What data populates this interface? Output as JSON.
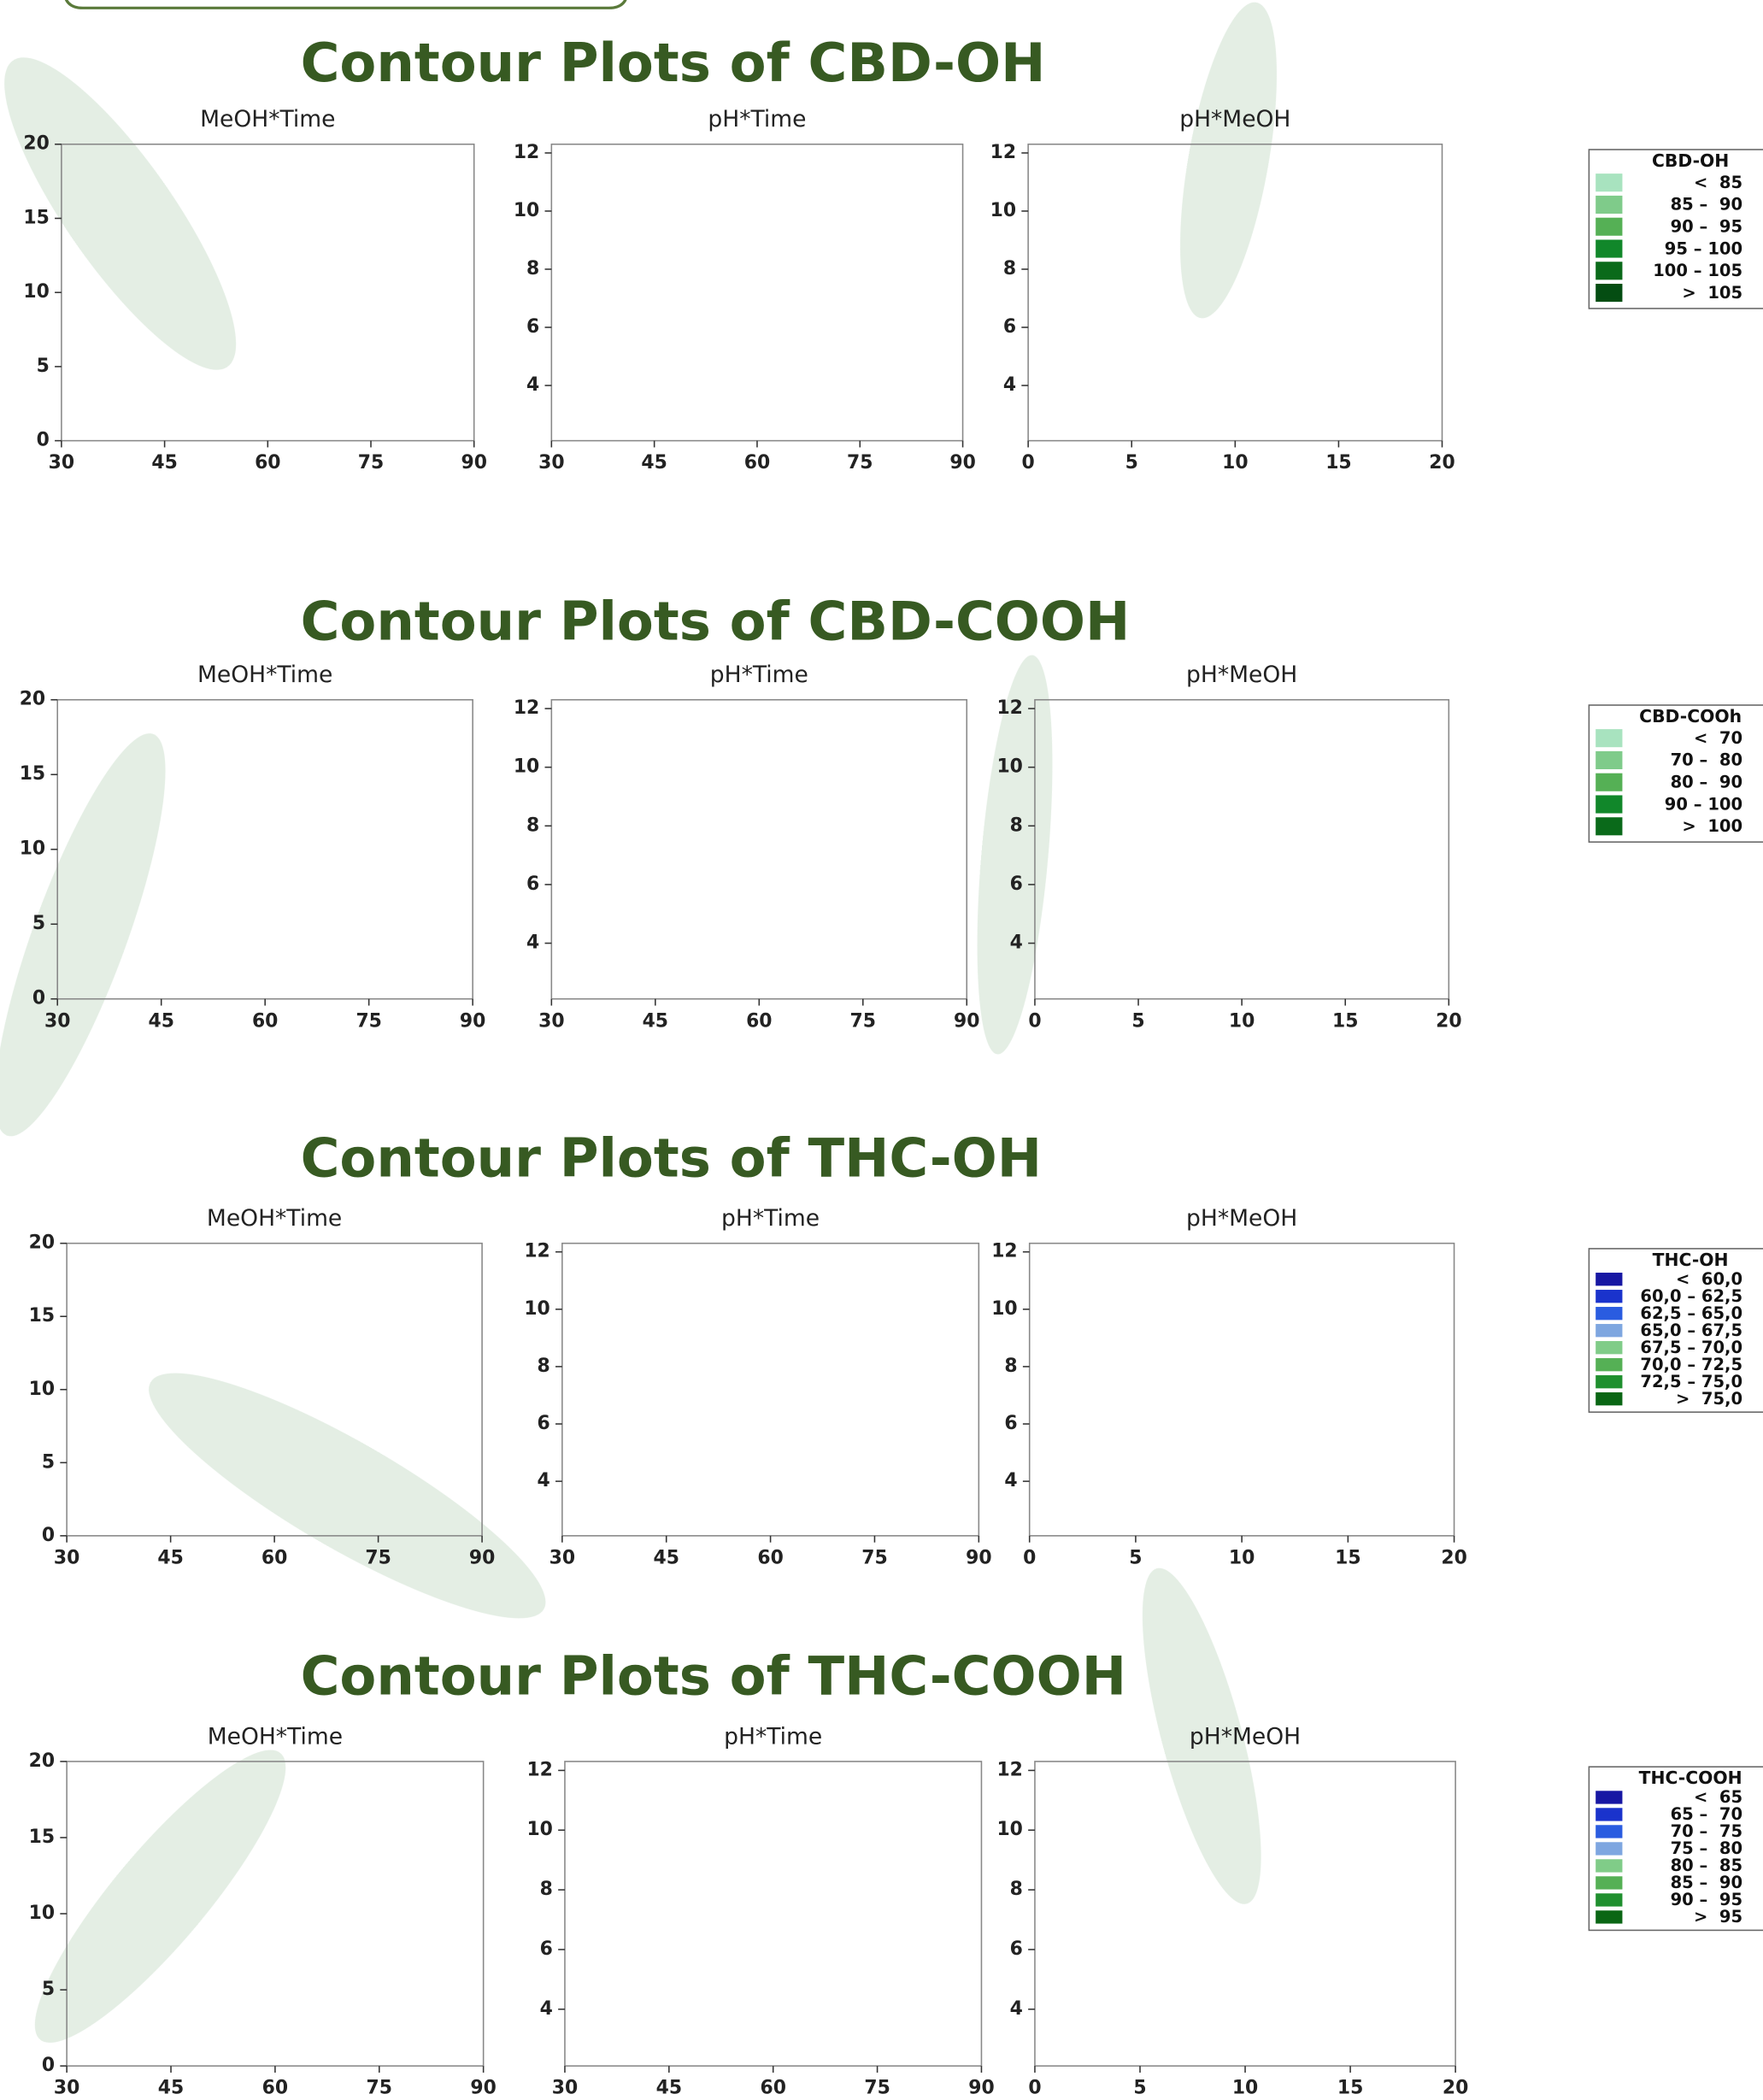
{
  "chart_data": [
    {
      "type": "contour",
      "title": "Contour Plots of CBD-OH",
      "legend_title": "CBD-OH",
      "levels": [
        {
          "label": "<  85",
          "color": "#a8e3bf"
        },
        {
          "label": "85 –  90",
          "color": "#7fcb8a"
        },
        {
          "label": "90 –  95",
          "color": "#55b055"
        },
        {
          "label": "95 – 100",
          "color": "#11872a"
        },
        {
          "label": "100 – 105",
          "color": "#0a6a1a"
        },
        {
          "label": ">  105",
          "color": "#044d12"
        }
      ],
      "panels": [
        {
          "title": "MeOH*Time",
          "xlim": [
            30,
            90
          ],
          "ylim": [
            0,
            20
          ],
          "xticks": [
            30,
            45,
            60,
            75,
            90
          ],
          "yticks": [
            0,
            5,
            10,
            15,
            20
          ]
        },
        {
          "title": "pH*Time",
          "xlim": [
            30,
            90
          ],
          "ylim": [
            2.1,
            12.3
          ],
          "xticks": [
            30,
            45,
            60,
            75,
            90
          ],
          "yticks": [
            4,
            6,
            8,
            10,
            12
          ]
        },
        {
          "title": "pH*MeOH",
          "xlim": [
            0,
            20
          ],
          "ylim": [
            2.1,
            12.3
          ],
          "xticks": [
            0,
            5,
            10,
            15,
            20
          ],
          "yticks": [
            4,
            6,
            8,
            10,
            12
          ]
        }
      ]
    },
    {
      "type": "contour",
      "title": "Contour Plots of CBD-COOH",
      "legend_title": "CBD-COOh",
      "levels": [
        {
          "label": "<  70",
          "color": "#a8e3bf"
        },
        {
          "label": "70 –  80",
          "color": "#7fcb8a"
        },
        {
          "label": "80 –  90",
          "color": "#55b055"
        },
        {
          "label": "90 – 100",
          "color": "#11872a"
        },
        {
          "label": ">  100",
          "color": "#0a6a1a"
        }
      ],
      "panels": [
        {
          "title": "MeOH*Time",
          "xlim": [
            30,
            90
          ],
          "ylim": [
            0,
            20
          ],
          "xticks": [
            30,
            45,
            60,
            75,
            90
          ],
          "yticks": [
            0,
            5,
            10,
            15,
            20
          ]
        },
        {
          "title": "pH*Time",
          "xlim": [
            30,
            90
          ],
          "ylim": [
            2.1,
            12.3
          ],
          "xticks": [
            30,
            45,
            60,
            75,
            90
          ],
          "yticks": [
            4,
            6,
            8,
            10,
            12
          ]
        },
        {
          "title": "pH*MeOH",
          "xlim": [
            0,
            20
          ],
          "ylim": [
            2.1,
            12.3
          ],
          "xticks": [
            0,
            5,
            10,
            15,
            20
          ],
          "yticks": [
            4,
            6,
            8,
            10,
            12
          ]
        }
      ]
    },
    {
      "type": "contour",
      "title": "Contour Plots of THC-OH",
      "legend_title": "THC-OH",
      "levels": [
        {
          "label": "<  60,0",
          "color": "#1717a3"
        },
        {
          "label": "60,0 – 62,5",
          "color": "#1a33cc"
        },
        {
          "label": "62,5 – 65,0",
          "color": "#2a5ce0"
        },
        {
          "label": "65,0 – 67,5",
          "color": "#7ea6e0"
        },
        {
          "label": "67,5 – 70,0",
          "color": "#80cc88"
        },
        {
          "label": "70,0 – 72,5",
          "color": "#55b055"
        },
        {
          "label": "72,5 – 75,0",
          "color": "#1f8f2e"
        },
        {
          "label": ">  75,0",
          "color": "#0a6614"
        }
      ],
      "panels": [
        {
          "title": "MeOH*Time",
          "xlim": [
            30,
            90
          ],
          "ylim": [
            0,
            20
          ],
          "xticks": [
            30,
            45,
            60,
            75,
            90
          ],
          "yticks": [
            0,
            5,
            10,
            15,
            20
          ]
        },
        {
          "title": "pH*Time",
          "xlim": [
            30,
            90
          ],
          "ylim": [
            2.1,
            12.3
          ],
          "xticks": [
            30,
            45,
            60,
            75,
            90
          ],
          "yticks": [
            4,
            6,
            8,
            10,
            12
          ]
        },
        {
          "title": "pH*MeOH",
          "xlim": [
            0,
            20
          ],
          "ylim": [
            2.1,
            12.3
          ],
          "xticks": [
            0,
            5,
            10,
            15,
            20
          ],
          "yticks": [
            4,
            6,
            8,
            10,
            12
          ]
        }
      ]
    },
    {
      "type": "contour",
      "title": "Contour Plots of THC-COOH",
      "legend_title": "THC-COOH",
      "levels": [
        {
          "label": "<  65",
          "color": "#1717a3"
        },
        {
          "label": "65 –  70",
          "color": "#1a33cc"
        },
        {
          "label": "70 –  75",
          "color": "#2a5ce0"
        },
        {
          "label": "75 –  80",
          "color": "#7ea6e0"
        },
        {
          "label": "80 –  85",
          "color": "#80cc88"
        },
        {
          "label": "85 –  90",
          "color": "#55b055"
        },
        {
          "label": "90 –  95",
          "color": "#1f8f2e"
        },
        {
          "label": ">  95",
          "color": "#0a6614"
        }
      ],
      "panels": [
        {
          "title": "MeOH*Time",
          "xlim": [
            30,
            90
          ],
          "ylim": [
            0,
            20
          ],
          "xticks": [
            30,
            45,
            60,
            75,
            90
          ],
          "yticks": [
            0,
            5,
            10,
            15,
            20
          ]
        },
        {
          "title": "pH*Time",
          "xlim": [
            30,
            90
          ],
          "ylim": [
            2.1,
            12.3
          ],
          "xticks": [
            30,
            45,
            60,
            75,
            90
          ],
          "yticks": [
            4,
            6,
            8,
            10,
            12
          ]
        },
        {
          "title": "pH*MeOH",
          "xlim": [
            0,
            20
          ],
          "ylim": [
            2.1,
            12.3
          ],
          "xticks": [
            0,
            5,
            10,
            15,
            20
          ],
          "yticks": [
            4,
            6,
            8,
            10,
            12
          ]
        }
      ]
    }
  ]
}
